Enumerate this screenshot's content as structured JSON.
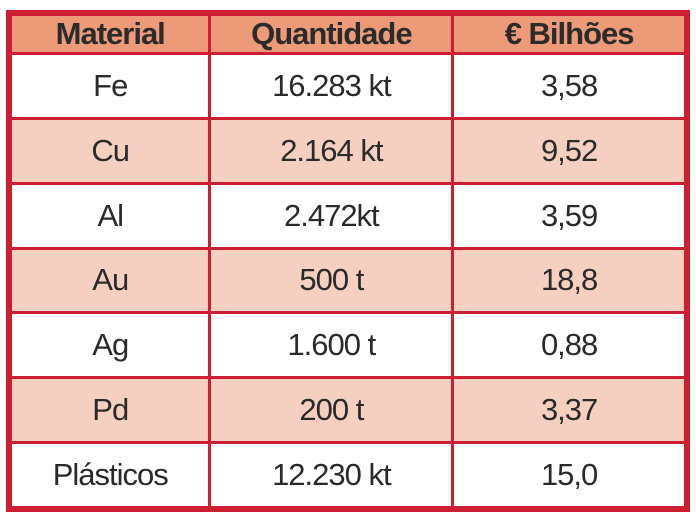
{
  "table": {
    "headers": [
      "Material",
      "Quantidade",
      "€ Bilhões"
    ],
    "rows": [
      [
        "Fe",
        "16.283 kt",
        "3,58"
      ],
      [
        "Cu",
        "2.164 kt",
        "9,52"
      ],
      [
        "Al",
        "2.472kt",
        "3,59"
      ],
      [
        "Au",
        "500 t",
        "18,8"
      ],
      [
        "Ag",
        "1.600 t",
        "0,88"
      ],
      [
        "Pd",
        "200 t",
        "3,37"
      ],
      [
        "Plásticos",
        "12.230 kt",
        "15,0"
      ]
    ]
  },
  "colors": {
    "border": "#cc1f33",
    "header_bg": "#ec9a77",
    "row_alt_bg": "#f5d0c0",
    "row_bg": "#ffffff"
  }
}
